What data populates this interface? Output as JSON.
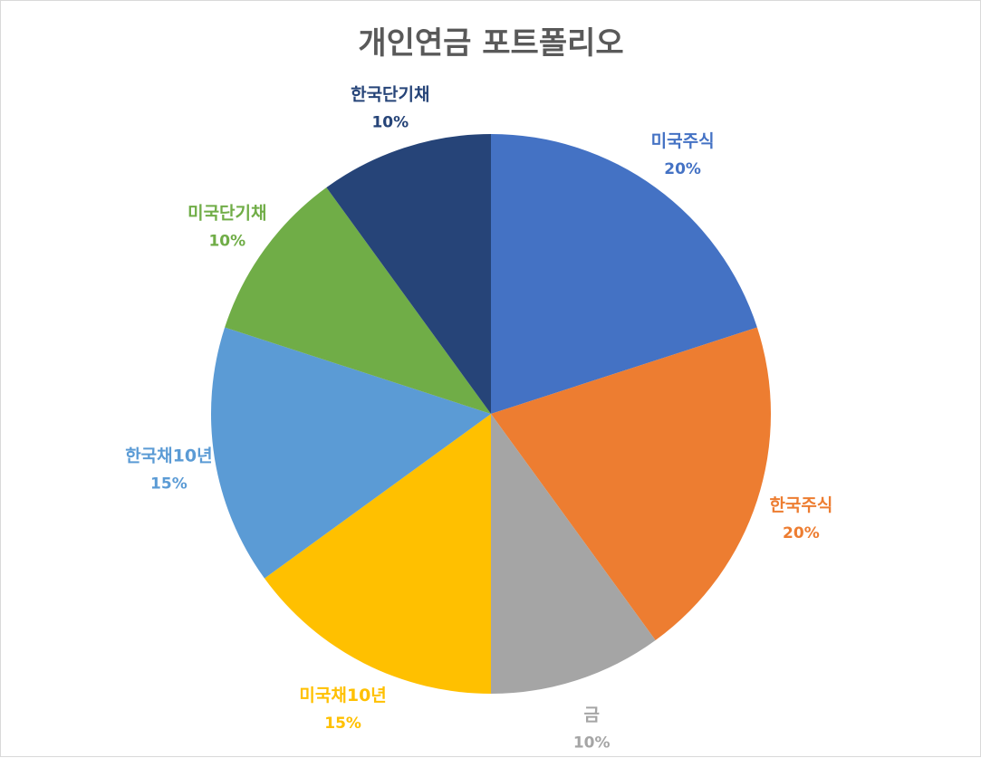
{
  "chart_data": {
    "type": "pie",
    "title": "개인연금 포트폴리오",
    "start_angle_deg": 0,
    "direction": "clockwise",
    "legend": "none",
    "slices": [
      {
        "label": "미국주식",
        "value": 20,
        "pct_label": "20%",
        "color": "#4472C4"
      },
      {
        "label": "한국주식",
        "value": 20,
        "pct_label": "20%",
        "color": "#ED7D31"
      },
      {
        "label": "금",
        "value": 10,
        "pct_label": "10%",
        "color": "#A5A5A5"
      },
      {
        "label": "미국채10년",
        "value": 15,
        "pct_label": "15%",
        "color": "#FFC000"
      },
      {
        "label": "한국채10년",
        "value": 15,
        "pct_label": "15%",
        "color": "#5B9BD5"
      },
      {
        "label": "미국단기채",
        "value": 10,
        "pct_label": "10%",
        "color": "#70AD47"
      },
      {
        "label": "한국단기채",
        "value": 10,
        "pct_label": "10%",
        "color": "#264478"
      }
    ]
  }
}
